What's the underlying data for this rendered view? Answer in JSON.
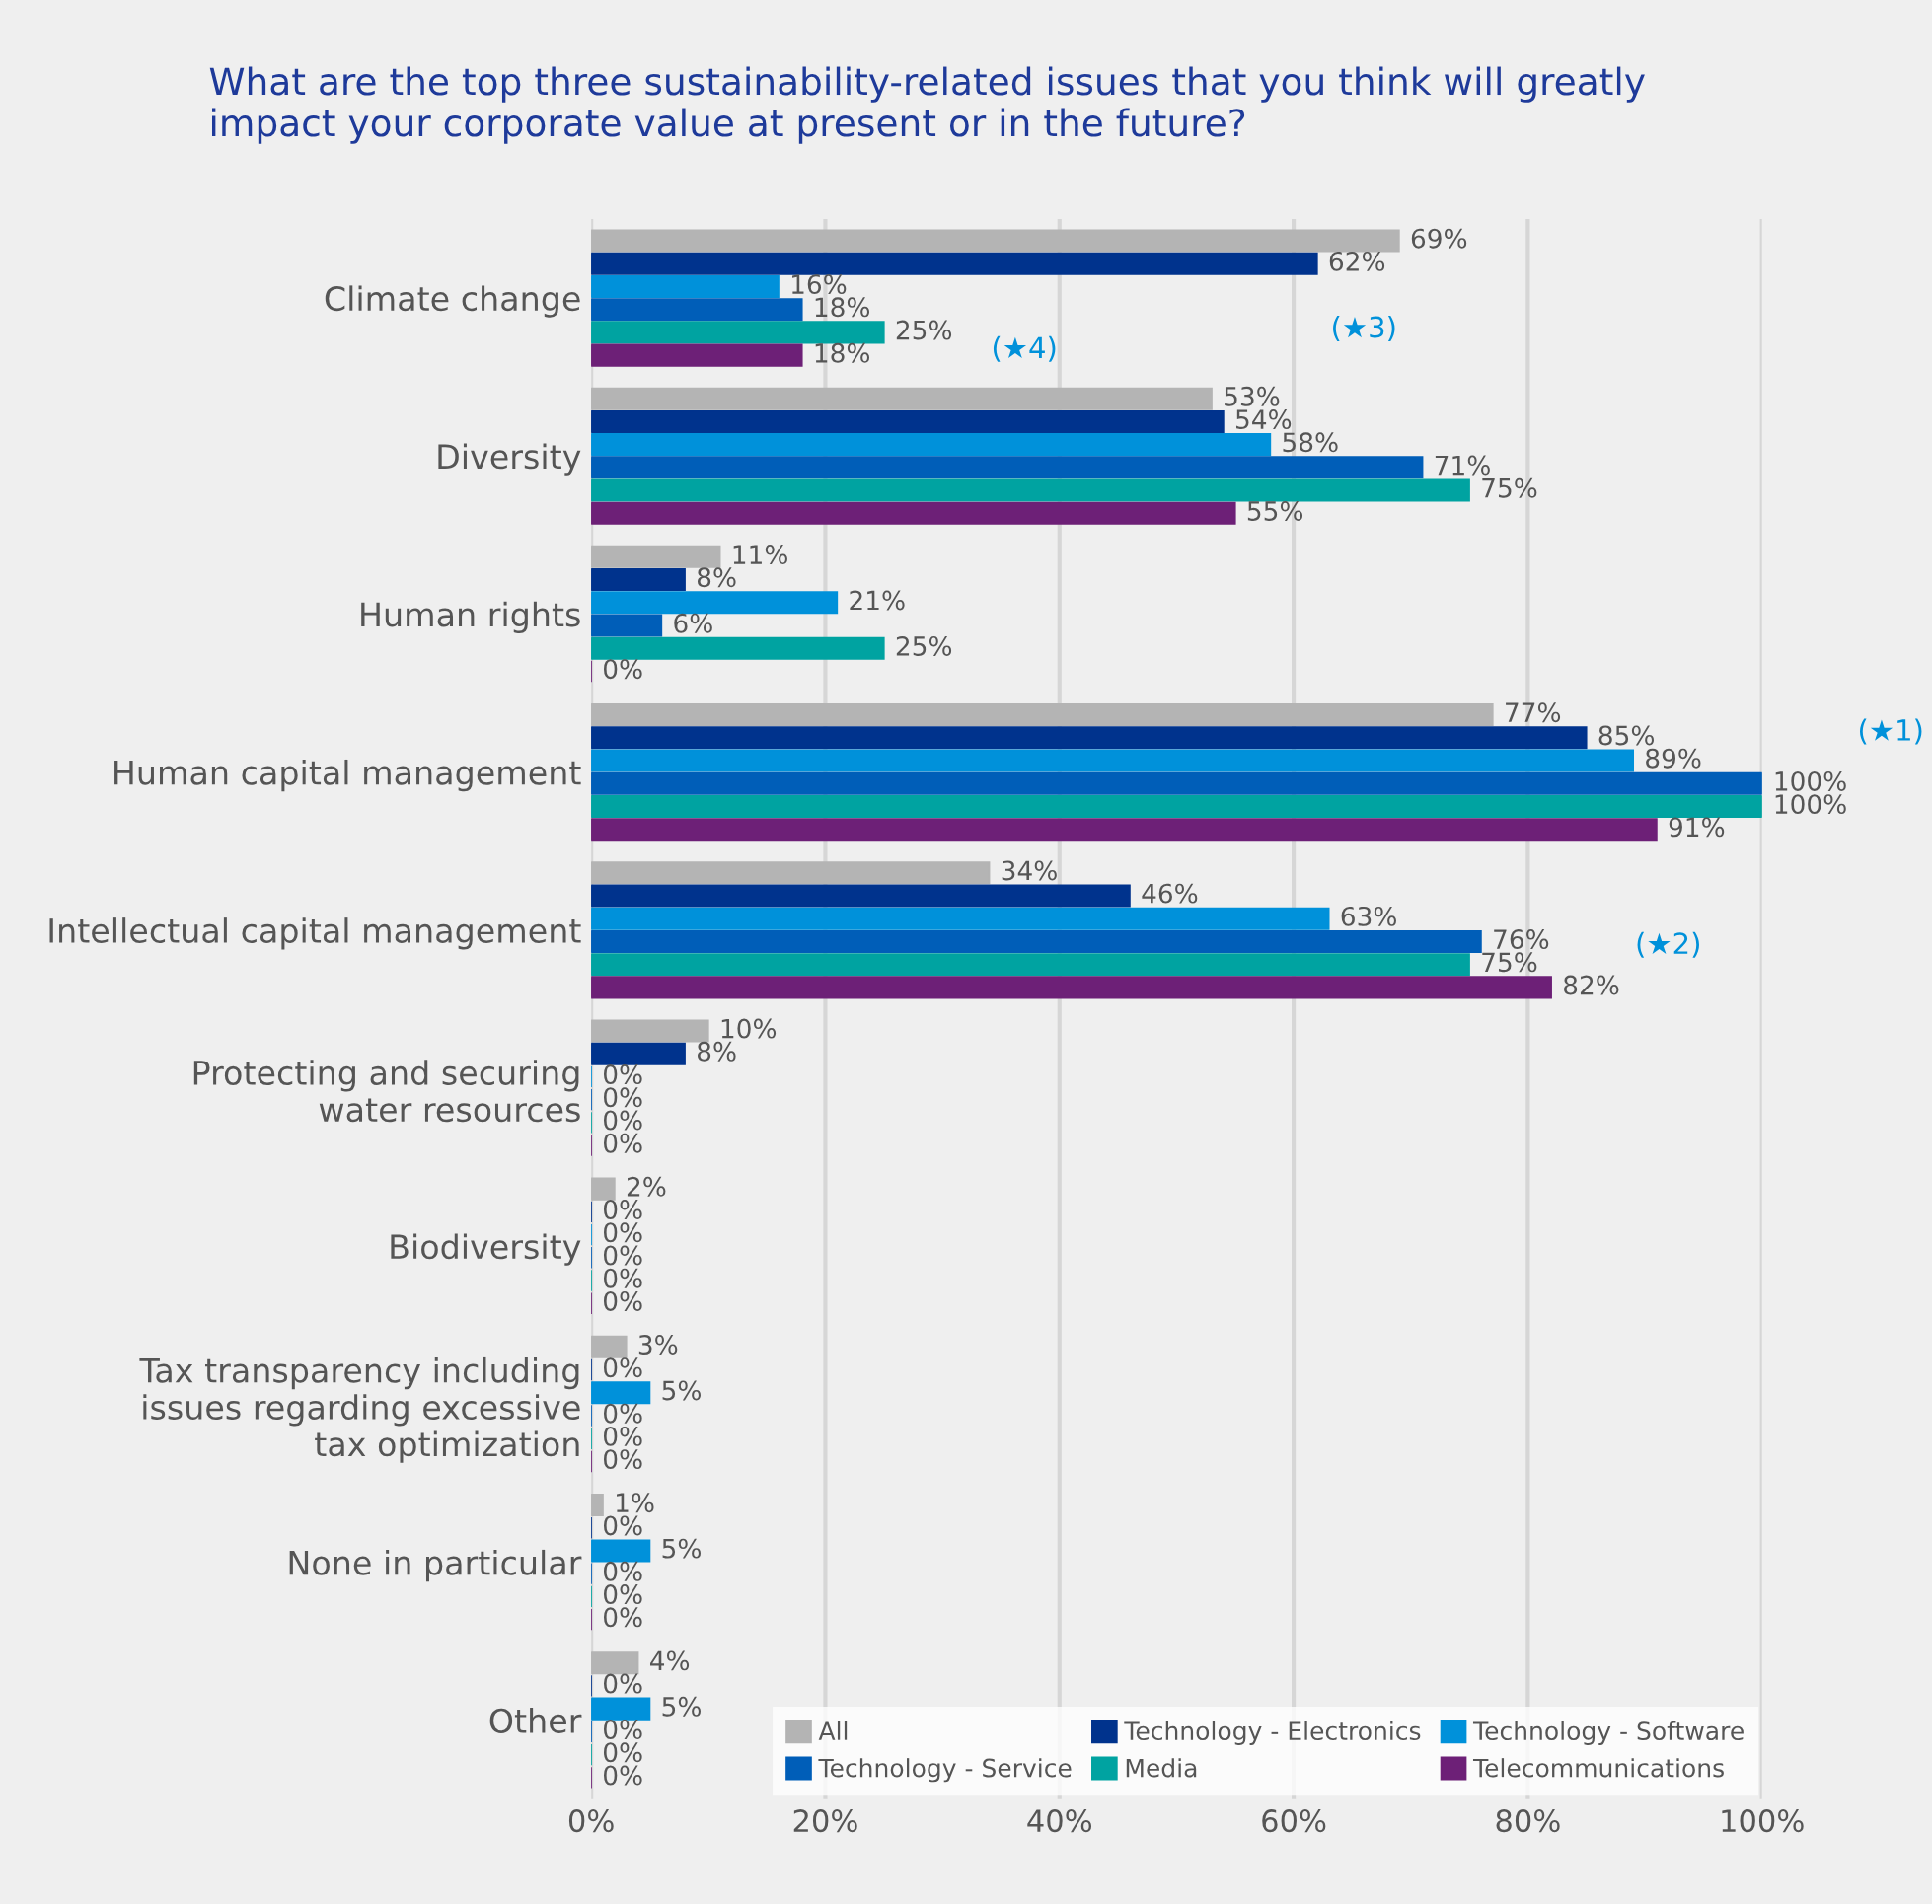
{
  "chart_data": {
    "type": "bar",
    "orientation": "horizontal",
    "title": "What are the top three sustainability-related issues that you think will greatly\nimpact your corporate value at present or in the future?",
    "categories": [
      "Climate change",
      "Diversity",
      "Human rights",
      "Human capital management",
      "Intellectual capital management",
      "Protecting and securing\nwater resources",
      "Biodiversity",
      "Tax transparency including\nissues regarding excessive\ntax optimization",
      "None in particular",
      "Other"
    ],
    "series": [
      {
        "name": "All",
        "color": "#b4b4b4",
        "values": [
          69,
          53,
          11,
          77,
          34,
          10,
          2,
          3,
          1,
          4
        ],
        "value_labels": [
          "69%",
          "53%",
          "11%",
          "77%",
          "34%",
          "10%",
          "2%",
          "3%",
          "1%",
          "4%"
        ]
      },
      {
        "name": "Technology - Electronics",
        "color": "#00338d",
        "values": [
          62,
          54,
          8,
          85,
          46,
          8,
          0,
          0,
          0,
          0
        ],
        "value_labels": [
          "62%",
          "54%",
          "8%",
          "85%",
          "46%",
          "8%",
          "0%",
          "0%",
          "0%",
          "0%"
        ]
      },
      {
        "name": "Technology - Software",
        "color": "#0091da",
        "values": [
          16,
          58,
          21,
          89,
          63,
          0,
          0,
          5,
          5,
          5
        ],
        "value_labels": [
          "16%",
          "58%",
          "21%",
          "89%",
          "63%",
          "0%",
          "0%",
          "5%",
          "5%",
          "5%"
        ]
      },
      {
        "name": "Technology - Service",
        "color": "#005eb8",
        "values": [
          18,
          71,
          6,
          100,
          76,
          0,
          0,
          0,
          0,
          0
        ],
        "value_labels": [
          "18%",
          "71%",
          "6%",
          "100%",
          "76%",
          "0%",
          "0%",
          "0%",
          "0%",
          "0%"
        ]
      },
      {
        "name": "Media",
        "color": "#00a3a1",
        "values": [
          25,
          75,
          25,
          100,
          75,
          0,
          0,
          0,
          0,
          0
        ],
        "value_labels": [
          "25%",
          "75%",
          "25%",
          "100%",
          "75%",
          "0%",
          "0%",
          "0%",
          "0%",
          "0%"
        ]
      },
      {
        "name": "Telecommunications",
        "color": "#6d2077",
        "values": [
          18,
          55,
          0,
          91,
          82,
          0,
          0,
          0,
          0,
          0
        ],
        "value_labels": [
          "18%",
          "55%",
          "0%",
          "91%",
          "82%",
          "0%",
          "0%",
          "0%",
          "0%",
          "0%"
        ]
      }
    ],
    "xlim": [
      0,
      100
    ],
    "xticks": [
      {
        "value": 0,
        "label": "0%"
      },
      {
        "value": 20,
        "label": "20%"
      },
      {
        "value": 40,
        "label": "40%"
      },
      {
        "value": 60,
        "label": "60%"
      },
      {
        "value": 80,
        "label": "80%"
      },
      {
        "value": 100,
        "label": "100%"
      }
    ],
    "annotations": [
      "(★1)",
      "(★2)",
      "(★3)",
      "(★4)"
    ],
    "grid": "x",
    "legend": "bottom right"
  }
}
